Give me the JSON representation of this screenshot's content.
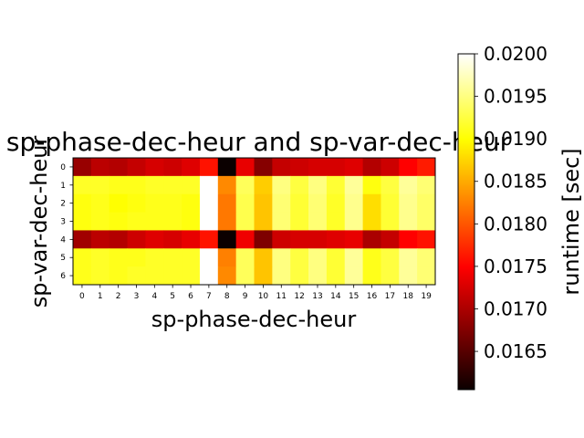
{
  "chart_data": {
    "type": "heatmap",
    "title": "sp-phase-dec-heur and sp-var-dec-heur",
    "xlabel": "sp-phase-dec-heur",
    "ylabel": "sp-var-dec-heur",
    "x_categories": [
      "0",
      "1",
      "2",
      "3",
      "4",
      "5",
      "6",
      "7",
      "8",
      "9",
      "10",
      "11",
      "12",
      "13",
      "14",
      "15",
      "16",
      "17",
      "18",
      "19"
    ],
    "y_categories": [
      "0",
      "1",
      "2",
      "3",
      "4",
      "5",
      "6"
    ],
    "colormap": "hot",
    "colorbar": {
      "label": "runtime [sec]",
      "range": [
        0.01605,
        0.02
      ],
      "ticks": [
        "0.0165",
        "0.0170",
        "0.0175",
        "0.0180",
        "0.0185",
        "0.0190",
        "0.0195",
        "0.0200"
      ],
      "tick_values": [
        0.0165,
        0.017,
        0.0175,
        0.018,
        0.0185,
        0.019,
        0.0195,
        0.02
      ]
    },
    "values": [
      [
        0.01685,
        0.01705,
        0.017,
        0.0171,
        0.0172,
        0.01715,
        0.01725,
        0.0176,
        0.01605,
        0.0173,
        0.01675,
        0.0171,
        0.01715,
        0.0172,
        0.0172,
        0.01725,
        0.017,
        0.01715,
        0.01745,
        0.01765
      ],
      [
        0.01915,
        0.01915,
        0.0191,
        0.0191,
        0.01915,
        0.01915,
        0.01915,
        0.02,
        0.0183,
        0.01935,
        0.0187,
        0.0195,
        0.01925,
        0.0195,
        0.0192,
        0.0196,
        0.01905,
        0.01925,
        0.0196,
        0.01945
      ],
      [
        0.01905,
        0.0191,
        0.019,
        0.01905,
        0.0191,
        0.0191,
        0.01905,
        0.02,
        0.0182,
        0.0193,
        0.01865,
        0.01945,
        0.0192,
        0.01945,
        0.01915,
        0.01955,
        0.0188,
        0.0192,
        0.01955,
        0.0194
      ],
      [
        0.01905,
        0.0191,
        0.01905,
        0.0191,
        0.0191,
        0.0191,
        0.01905,
        0.02,
        0.0182,
        0.0193,
        0.01865,
        0.01945,
        0.0192,
        0.01945,
        0.01915,
        0.01955,
        0.0188,
        0.0192,
        0.01955,
        0.0194
      ],
      [
        0.0169,
        0.01705,
        0.017,
        0.01715,
        0.01725,
        0.0172,
        0.0173,
        0.0176,
        0.01605,
        0.01735,
        0.0167,
        0.01715,
        0.0172,
        0.0172,
        0.01725,
        0.0173,
        0.01695,
        0.0171,
        0.01745,
        0.0176
      ],
      [
        0.0191,
        0.01915,
        0.0191,
        0.0191,
        0.01915,
        0.01915,
        0.01915,
        0.02,
        0.01825,
        0.01935,
        0.01865,
        0.0195,
        0.01925,
        0.0195,
        0.0192,
        0.0196,
        0.0191,
        0.01925,
        0.0196,
        0.01945
      ],
      [
        0.0191,
        0.01915,
        0.0191,
        0.01915,
        0.01915,
        0.01915,
        0.01915,
        0.02,
        0.0183,
        0.01935,
        0.01865,
        0.0195,
        0.01925,
        0.0195,
        0.0192,
        0.0196,
        0.0191,
        0.01925,
        0.0196,
        0.01945
      ]
    ]
  }
}
